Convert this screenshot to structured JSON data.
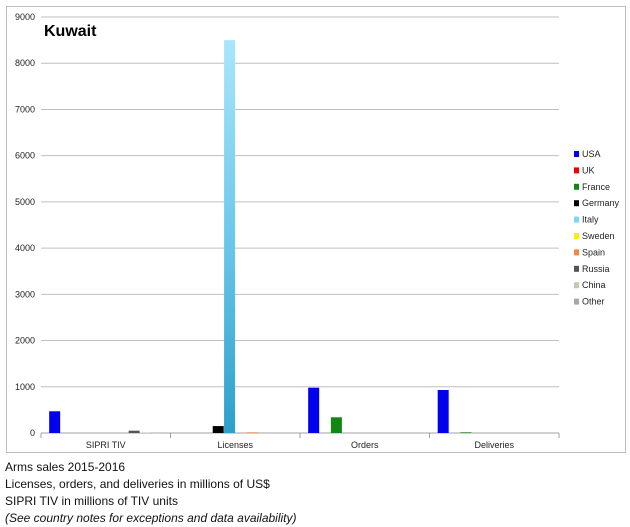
{
  "chart_data": {
    "type": "bar",
    "title": "Kuwait",
    "categories": [
      "SIPRI TIV",
      "Licenses",
      "Orders",
      "Deliveries"
    ],
    "y_ticks": [
      "0",
      "1000",
      "2000",
      "3000",
      "4000",
      "5000",
      "6000",
      "7000",
      "8000",
      "9000"
    ],
    "ylim": [
      0,
      9000
    ],
    "grid": true,
    "legend_position": "right",
    "series": [
      {
        "name": "USA",
        "color": "#0000ee",
        "values": [
          470,
          0,
          980,
          930
        ]
      },
      {
        "name": "UK",
        "color": "#ee0000",
        "values": [
          0,
          0,
          0,
          0
        ]
      },
      {
        "name": "France",
        "color": "#118811",
        "values": [
          0,
          0,
          340,
          15
        ]
      },
      {
        "name": "Germany",
        "color": "#000000",
        "values": [
          0,
          150,
          0,
          0
        ]
      },
      {
        "name": "Italy",
        "color": "#7fd6f2",
        "values": [
          0,
          8500,
          0,
          0
        ]
      },
      {
        "name": "Sweden",
        "color": "#ffee00",
        "values": [
          0,
          0,
          0,
          0
        ]
      },
      {
        "name": "Spain",
        "color": "#ee8844",
        "values": [
          0,
          15,
          0,
          0
        ]
      },
      {
        "name": "Russia",
        "color": "#555555",
        "values": [
          50,
          0,
          0,
          0
        ]
      },
      {
        "name": "China",
        "color": "#c8c8b0",
        "values": [
          12,
          0,
          0,
          0
        ]
      },
      {
        "name": "Other",
        "color": "#a8a8a8",
        "values": [
          8,
          0,
          0,
          0
        ]
      }
    ]
  },
  "notes": {
    "line1": "Arms sales 2015-2016",
    "line2": "Licenses, orders, and deliveries in millions of US$",
    "line3": "SIPRI TIV in millions of TIV units",
    "line4": "(See country notes for exceptions and data availability)"
  }
}
